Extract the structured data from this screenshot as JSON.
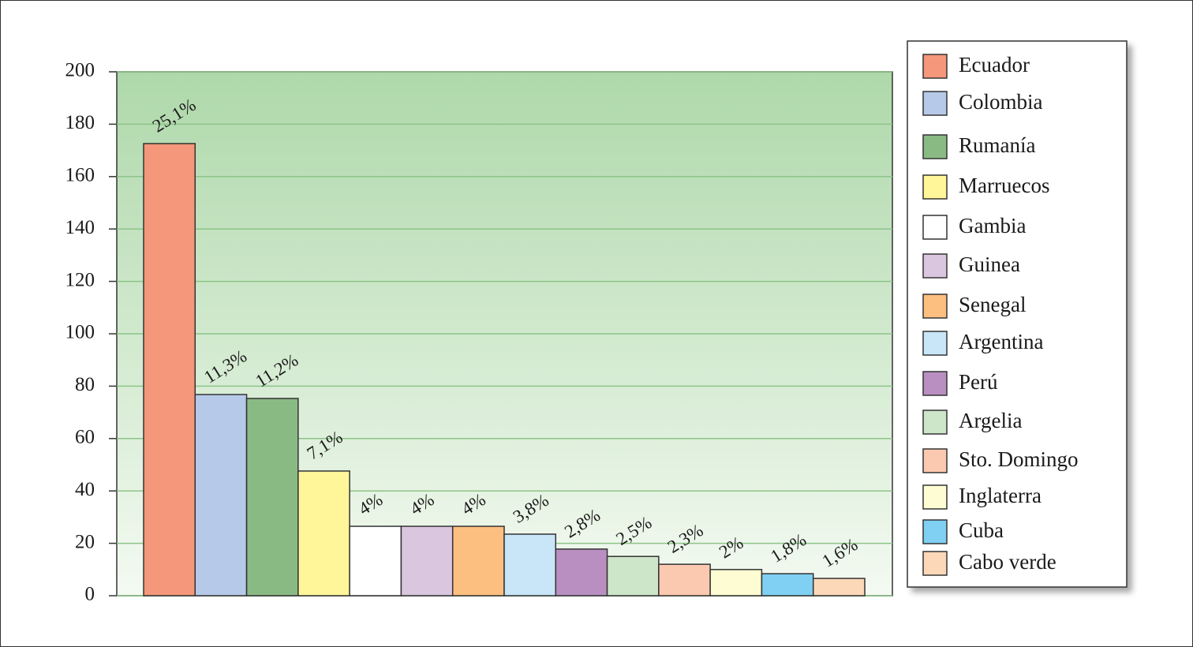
{
  "chart_data": {
    "type": "bar",
    "categories": [
      "Ecuador",
      "Colombia",
      "Rumanía",
      "Marruecos",
      "Gambia",
      "Guinea",
      "Senegal",
      "Argentina",
      "Perú",
      "Argelia",
      "Sto. Domingo",
      "Inglaterra",
      "Cuba",
      "Cabo verde"
    ],
    "values": [
      172.6,
      76.8,
      75.3,
      47.6,
      26.5,
      26.5,
      26.5,
      23.5,
      17.8,
      15,
      12,
      10,
      8.4,
      6.6
    ],
    "annotations": [
      "25,1%",
      "11,3%",
      "11,2%",
      "7,1%",
      "4%",
      "4%",
      "4%",
      "3,8%",
      "2,8%",
      "2,5%",
      "2,3%",
      "2%",
      "1,8%",
      "1,6%"
    ],
    "colors": [
      "#f4977a",
      "#b7c9e8",
      "#8aba84",
      "#fff599",
      "#ffffff",
      "#dbc6e0",
      "#fdbf80",
      "#c8e6f7",
      "#b98fc1",
      "#cde5c9",
      "#fbc9b0",
      "#fefcd2",
      "#7fd0f2",
      "#fcd8b8"
    ],
    "ylim": [
      0,
      200
    ],
    "yticks": [
      0,
      20,
      40,
      60,
      80,
      100,
      120,
      140,
      160,
      180,
      200
    ],
    "grid": true,
    "legend": "right"
  }
}
